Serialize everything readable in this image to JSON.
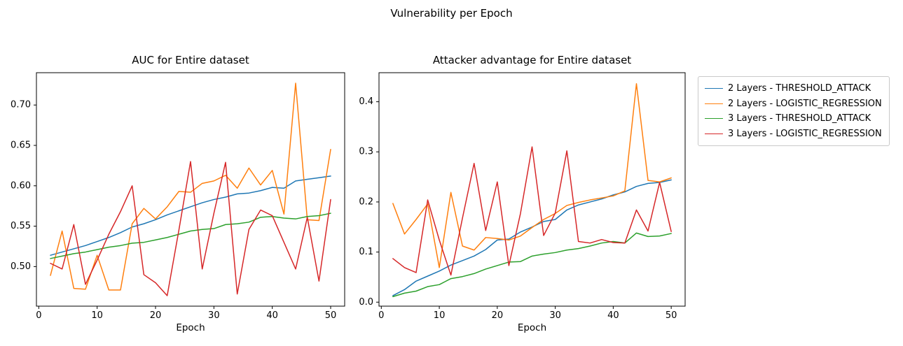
{
  "figure": {
    "suptitle": "Vulnerability per Epoch"
  },
  "legend": {
    "entries": [
      {
        "label": "2 Layers - THRESHOLD_ATTACK",
        "color": "#1f77b4"
      },
      {
        "label": "2 Layers - LOGISTIC_REGRESSION",
        "color": "#ff7f0e"
      },
      {
        "label": "3 Layers - THRESHOLD_ATTACK",
        "color": "#2ca02c"
      },
      {
        "label": "3 Layers - LOGISTIC_REGRESSION",
        "color": "#d62728"
      }
    ]
  },
  "chart_data": [
    {
      "type": "line",
      "title": "AUC for Entire dataset",
      "xlabel": "Epoch",
      "ylabel": "",
      "x": [
        2,
        4,
        6,
        8,
        10,
        12,
        14,
        16,
        18,
        20,
        22,
        24,
        26,
        28,
        30,
        32,
        34,
        36,
        38,
        40,
        42,
        44,
        46,
        48,
        50
      ],
      "xlim": [
        -0.4,
        52.4
      ],
      "ylim": [
        0.451,
        0.74
      ],
      "xticks": [
        0,
        10,
        20,
        30,
        40,
        50
      ],
      "xtick_labels": [
        "0",
        "10",
        "20",
        "30",
        "40",
        "50"
      ],
      "yticks": [
        0.5,
        0.55,
        0.6,
        0.65,
        0.7
      ],
      "ytick_labels": [
        "0.50",
        "0.55",
        "0.60",
        "0.65",
        "0.70"
      ],
      "grid": false,
      "series": [
        {
          "name": "2 Layers - THRESHOLD_ATTACK",
          "color": "#1f77b4",
          "values": [
            0.514,
            0.518,
            0.522,
            0.526,
            0.531,
            0.536,
            0.542,
            0.549,
            0.553,
            0.558,
            0.564,
            0.569,
            0.574,
            0.579,
            0.583,
            0.586,
            0.59,
            0.591,
            0.594,
            0.598,
            0.597,
            0.606,
            0.608,
            0.61,
            0.612
          ]
        },
        {
          "name": "2 Layers - LOGISTIC_REGRESSION",
          "color": "#ff7f0e",
          "values": [
            0.489,
            0.544,
            0.473,
            0.472,
            0.514,
            0.471,
            0.471,
            0.553,
            0.572,
            0.559,
            0.574,
            0.593,
            0.592,
            0.603,
            0.606,
            0.613,
            0.597,
            0.622,
            0.601,
            0.619,
            0.565,
            0.727,
            0.558,
            0.557,
            0.645
          ]
        },
        {
          "name": "3 Layers - THRESHOLD_ATTACK",
          "color": "#2ca02c",
          "values": [
            0.51,
            0.513,
            0.516,
            0.518,
            0.521,
            0.524,
            0.526,
            0.529,
            0.53,
            0.533,
            0.536,
            0.54,
            0.544,
            0.546,
            0.547,
            0.552,
            0.553,
            0.555,
            0.561,
            0.562,
            0.56,
            0.559,
            0.562,
            0.563,
            0.566
          ]
        },
        {
          "name": "3 Layers - LOGISTIC_REGRESSION",
          "color": "#d62728",
          "values": [
            0.504,
            0.497,
            0.552,
            0.478,
            0.508,
            0.54,
            0.568,
            0.6,
            0.49,
            0.48,
            0.464,
            0.545,
            0.63,
            0.497,
            0.566,
            0.629,
            0.466,
            0.546,
            0.57,
            0.563,
            0.53,
            0.497,
            0.561,
            0.482,
            0.583
          ]
        }
      ]
    },
    {
      "type": "line",
      "title": "Attacker advantage for Entire dataset",
      "xlabel": "Epoch",
      "ylabel": "",
      "x": [
        2,
        4,
        6,
        8,
        10,
        12,
        14,
        16,
        18,
        20,
        22,
        24,
        26,
        28,
        30,
        32,
        34,
        36,
        38,
        40,
        42,
        44,
        46,
        48,
        50
      ],
      "xlim": [
        -0.4,
        52.4
      ],
      "ylim": [
        -0.008,
        0.458
      ],
      "xticks": [
        0,
        10,
        20,
        30,
        40,
        50
      ],
      "xtick_labels": [
        "0",
        "10",
        "20",
        "30",
        "40",
        "50"
      ],
      "yticks": [
        0.0,
        0.1,
        0.2,
        0.3,
        0.4
      ],
      "ytick_labels": [
        "0.0",
        "0.1",
        "0.2",
        "0.3",
        "0.4"
      ],
      "grid": false,
      "series": [
        {
          "name": "2 Layers - THRESHOLD_ATTACK",
          "color": "#1f77b4",
          "values": [
            0.013,
            0.025,
            0.042,
            0.052,
            0.062,
            0.074,
            0.083,
            0.092,
            0.105,
            0.124,
            0.126,
            0.14,
            0.15,
            0.161,
            0.165,
            0.184,
            0.194,
            0.2,
            0.206,
            0.214,
            0.22,
            0.231,
            0.237,
            0.239,
            0.244
          ]
        },
        {
          "name": "2 Layers - LOGISTIC_REGRESSION",
          "color": "#ff7f0e",
          "values": [
            0.197,
            0.136,
            0.165,
            0.196,
            0.069,
            0.219,
            0.112,
            0.104,
            0.129,
            0.127,
            0.124,
            0.132,
            0.149,
            0.165,
            0.177,
            0.193,
            0.199,
            0.204,
            0.208,
            0.212,
            0.222,
            0.436,
            0.243,
            0.24,
            0.248
          ]
        },
        {
          "name": "3 Layers - THRESHOLD_ATTACK",
          "color": "#2ca02c",
          "values": [
            0.011,
            0.018,
            0.022,
            0.031,
            0.035,
            0.047,
            0.051,
            0.057,
            0.066,
            0.073,
            0.08,
            0.081,
            0.092,
            0.096,
            0.099,
            0.104,
            0.107,
            0.112,
            0.118,
            0.121,
            0.118,
            0.138,
            0.131,
            0.132,
            0.137
          ]
        },
        {
          "name": "3 Layers - LOGISTIC_REGRESSION",
          "color": "#d62728",
          "values": [
            0.087,
            0.069,
            0.059,
            0.204,
            0.124,
            0.054,
            0.168,
            0.277,
            0.143,
            0.24,
            0.073,
            0.177,
            0.31,
            0.133,
            0.178,
            0.302,
            0.121,
            0.118,
            0.125,
            0.119,
            0.118,
            0.184,
            0.142,
            0.239,
            0.141
          ]
        }
      ]
    }
  ]
}
